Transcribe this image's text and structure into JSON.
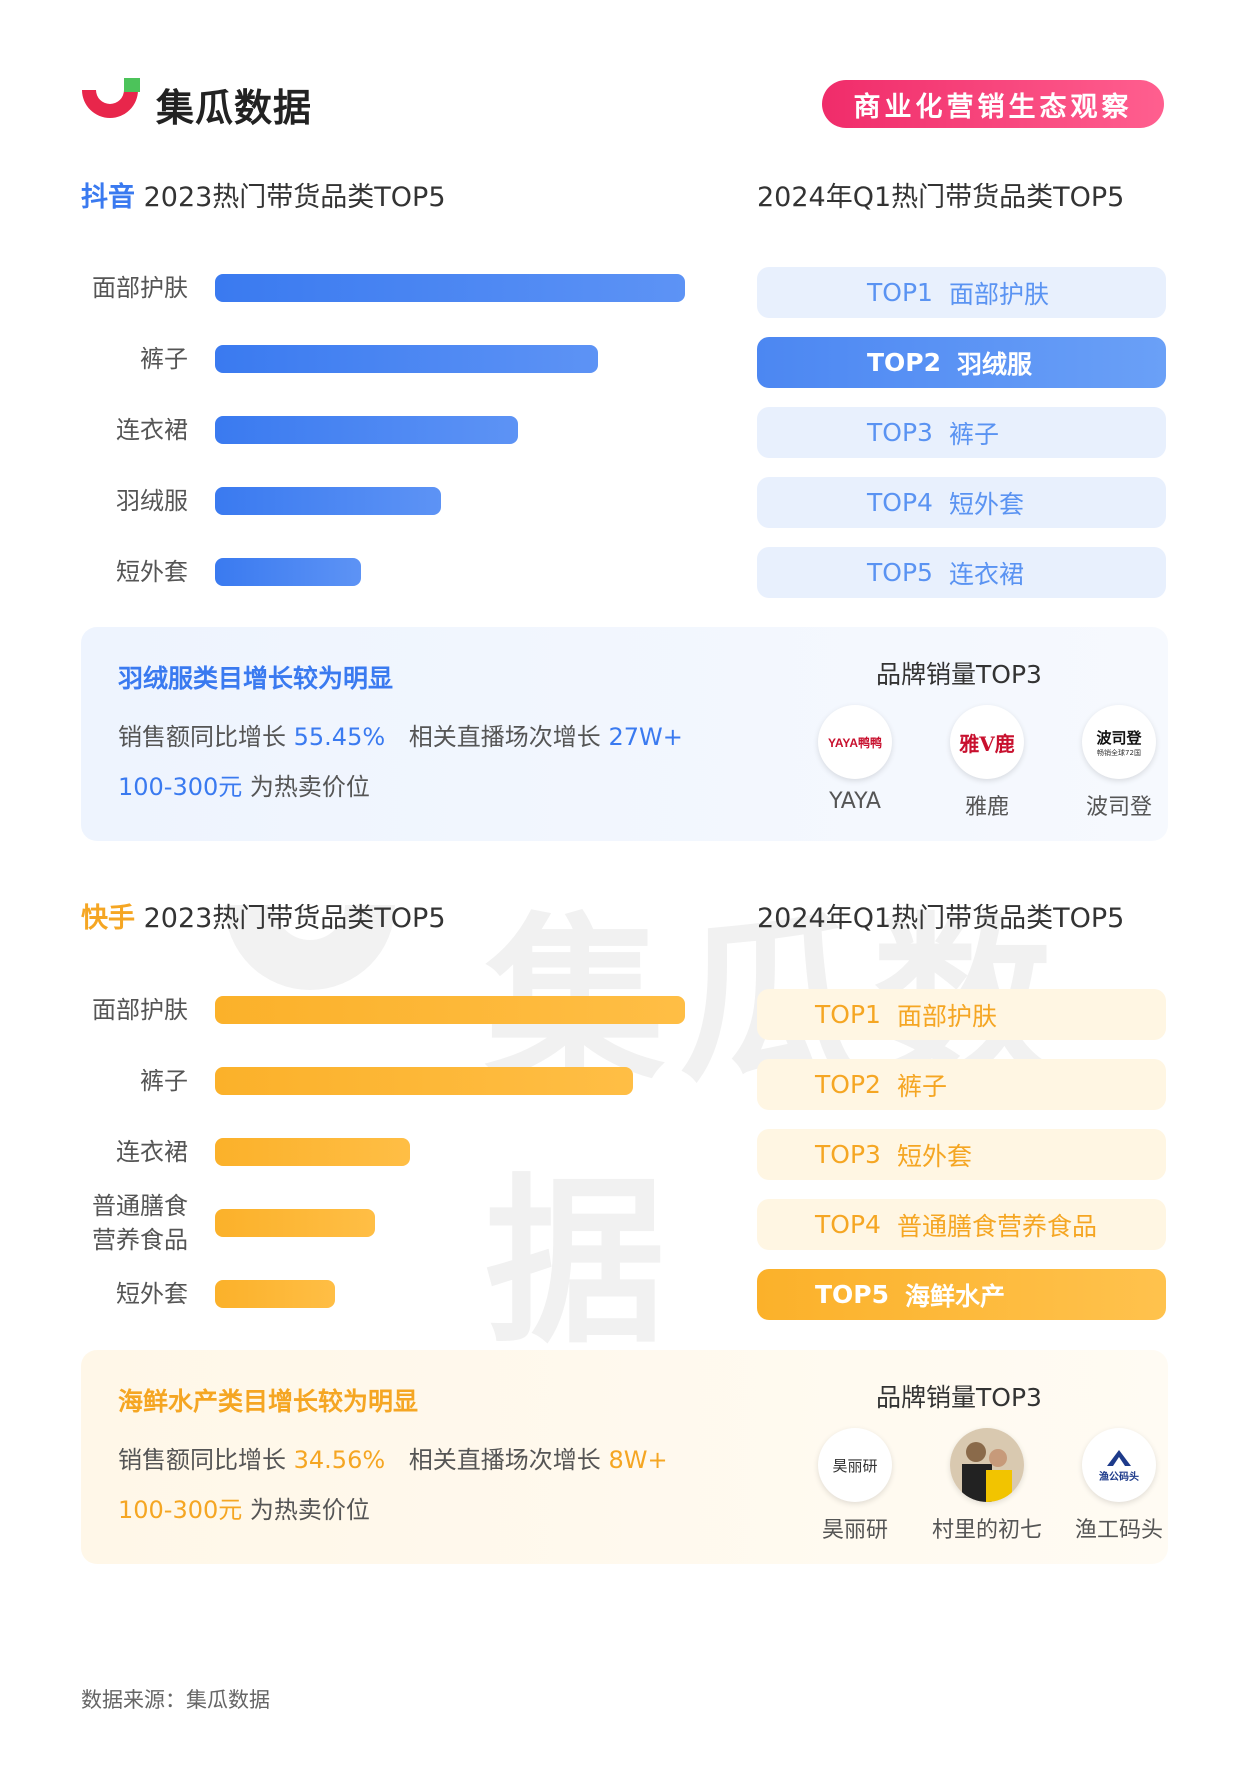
{
  "header": {
    "brand": "集瓜数据",
    "tag": "商业化营销生态观察"
  },
  "watermark": "集瓜数据",
  "colors": {
    "blue": "#3a7af0",
    "blue_light": "#e8f0fd",
    "blue_rank_text": "#5a93f2",
    "orange": "#fbb12a",
    "orange_light": "#fff6e3",
    "orange_rank_text": "#f5a623",
    "pink_tag": "#f02c6a"
  },
  "douyin": {
    "platform": "抖音",
    "title_suffix": "2023热门带货品类TOP5",
    "right_title": "2024年Q1热门带货品类TOP5",
    "ranks": [
      {
        "top": "TOP1",
        "name": "面部护肤",
        "highlight": false
      },
      {
        "top": "TOP2",
        "name": "羽绒服",
        "highlight": true
      },
      {
        "top": "TOP3",
        "name": "裤子",
        "highlight": false
      },
      {
        "top": "TOP4",
        "name": "短外套",
        "highlight": false
      },
      {
        "top": "TOP5",
        "name": "连衣裙",
        "highlight": false
      }
    ],
    "info": {
      "title": "羽绒服类目增长较为明显",
      "line1_a": "销售额同比增长",
      "line1_num1": "55.45%",
      "line1_b": "相关直播场次增长",
      "line1_num2": "27W+",
      "line2_num": "100-300元",
      "line2_b": "为热卖价位",
      "brand_title": "品牌销量TOP3",
      "brands": [
        {
          "name": "YAYA",
          "logo_text": "YAYA鸭鸭",
          "icon": "yaya-logo"
        },
        {
          "name": "雅鹿",
          "logo_text": "雅V鹿",
          "icon": "yalu-logo"
        },
        {
          "name": "波司登",
          "logo_text": "波司登",
          "logo_sub": "畅销全球72国",
          "icon": "bosideng-logo"
        }
      ]
    }
  },
  "kuaishou": {
    "platform": "快手",
    "title_suffix": "2023热门带货品类TOP5",
    "right_title": "2024年Q1热门带货品类TOP5",
    "ranks": [
      {
        "top": "TOP1",
        "name": "面部护肤",
        "highlight": false
      },
      {
        "top": "TOP2",
        "name": "裤子",
        "highlight": false
      },
      {
        "top": "TOP3",
        "name": "短外套",
        "highlight": false
      },
      {
        "top": "TOP4",
        "name": "普通膳食营养食品",
        "highlight": false
      },
      {
        "top": "TOP5",
        "name": "海鲜水产",
        "highlight": true
      }
    ],
    "info": {
      "title": "海鲜水产类目增长较为明显",
      "line1_a": "销售额同比增长",
      "line1_num1": "34.56%",
      "line1_b": "相关直播场次增长",
      "line1_num2": "8W+",
      "line2_num": "100-300元",
      "line2_b": "为热卖价位",
      "brand_title": "品牌销量TOP3",
      "brands": [
        {
          "name": "昊丽研",
          "logo_text": "昊丽研",
          "icon": "haoliyan-logo"
        },
        {
          "name": "村里的初七",
          "logo_text": "",
          "icon": "cunlidechuqi-avatar"
        },
        {
          "name": "渔工码头",
          "logo_text": "渔公码头",
          "icon": "yugongmatou-logo"
        }
      ]
    }
  },
  "chart_data": [
    {
      "type": "bar",
      "orientation": "horizontal",
      "title": "抖音 2023热门带货品类TOP5",
      "categories": [
        "面部护肤",
        "裤子",
        "连衣裙",
        "羽绒服",
        "短外套"
      ],
      "values": [
        100,
        81.5,
        64.5,
        48,
        31
      ],
      "ylim": [
        0,
        100
      ],
      "grid": false,
      "color": "#3a7af0"
    },
    {
      "type": "bar",
      "orientation": "horizontal",
      "title": "快手 2023热门带货品类TOP5",
      "categories": [
        "面部护肤",
        "裤子",
        "连衣裙",
        "普通膳食营养食品",
        "短外套"
      ],
      "category_labels": [
        "面部护肤",
        "裤子",
        "连衣裙",
        "普通膳食\n营养食品",
        "短外套"
      ],
      "values": [
        100,
        89,
        41.5,
        34,
        25.5
      ],
      "ylim": [
        0,
        100
      ],
      "grid": false,
      "color": "#fbb12a"
    }
  ],
  "footer": "数据来源：集瓜数据"
}
